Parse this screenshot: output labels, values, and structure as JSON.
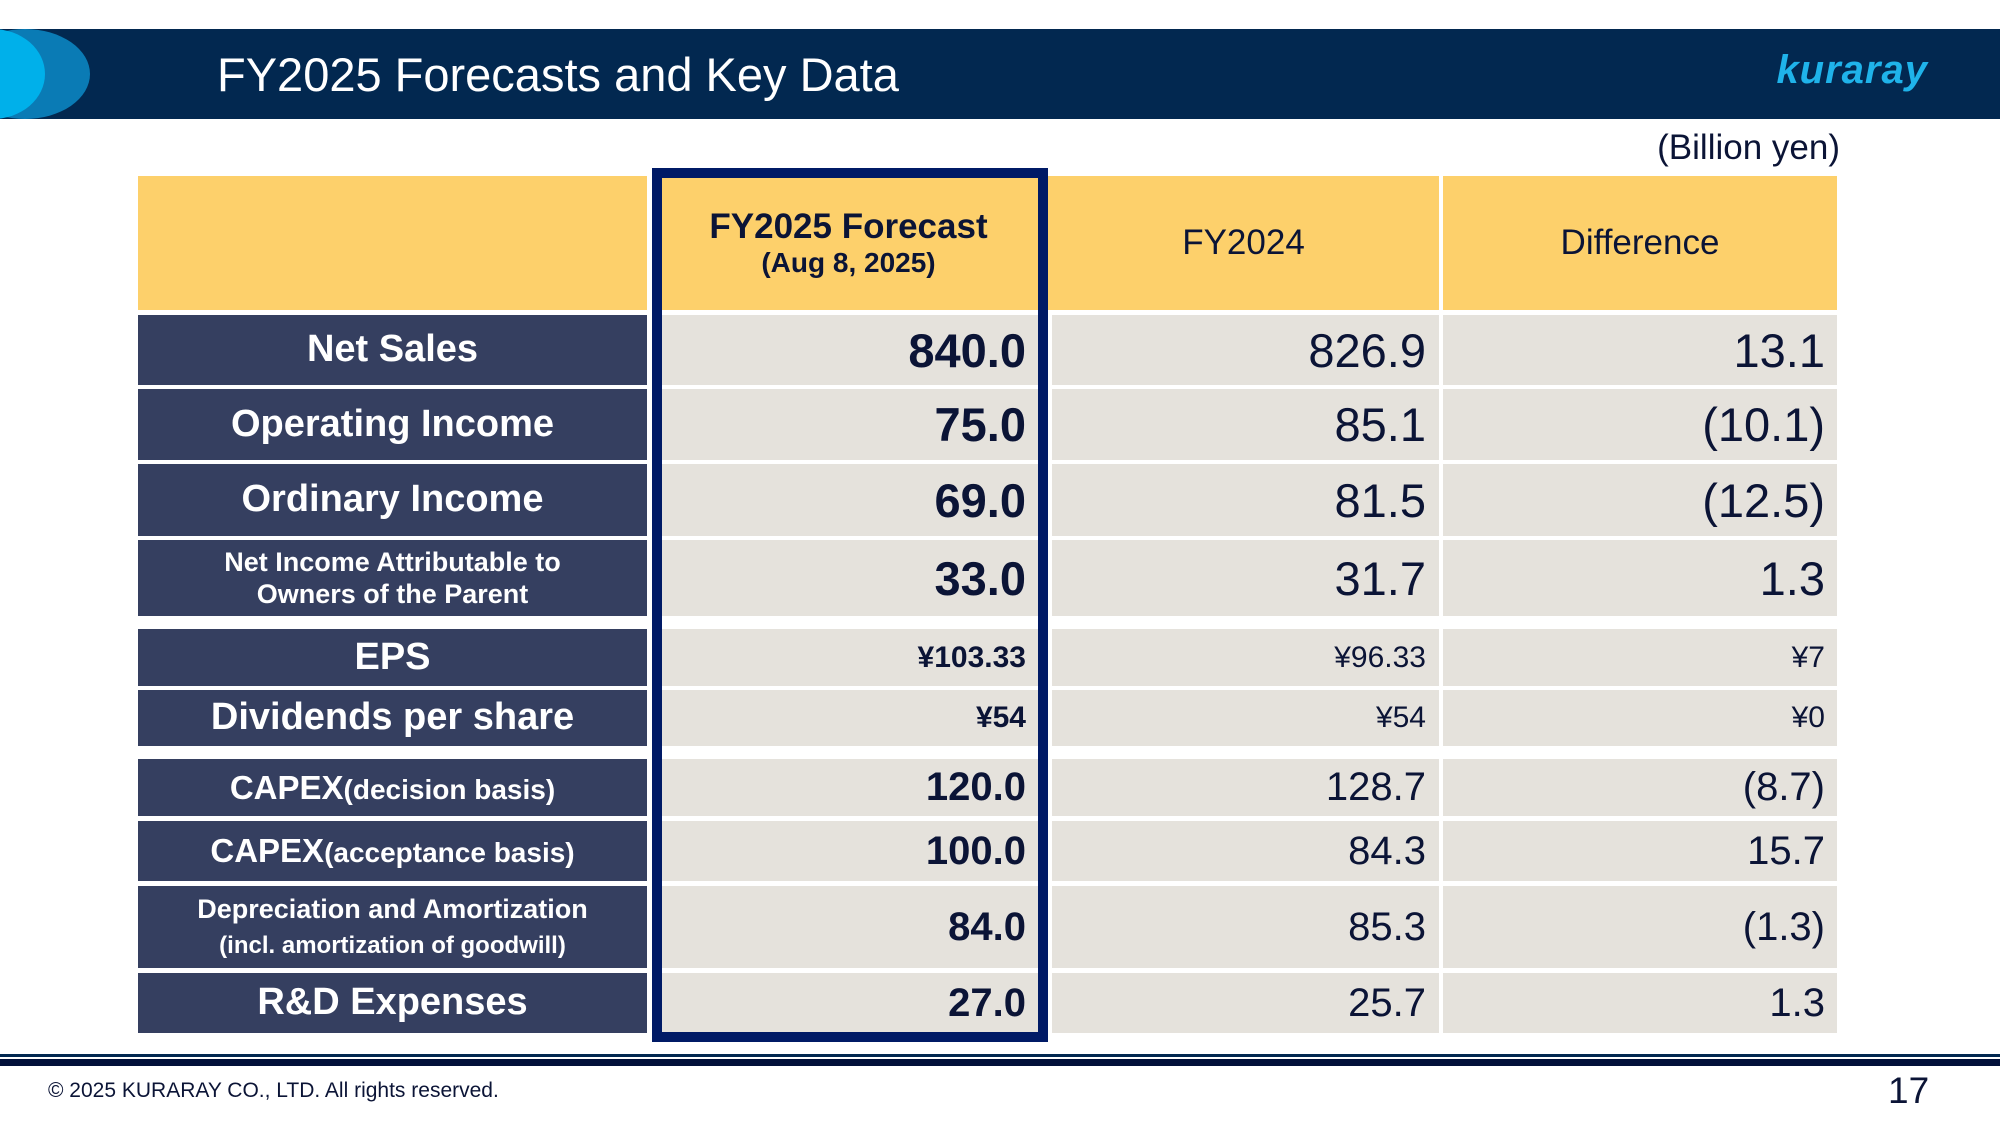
{
  "header": {
    "title": "FY2025 Forecasts and Key Data",
    "logo": "kuraray"
  },
  "unit": "(Billion yen)",
  "columns": {
    "forecast": "FY2025 Forecast",
    "forecast_date": "(Aug 8, 2025)",
    "prior": "FY2024",
    "diff": "Difference"
  },
  "rows": [
    {
      "label": "Net Sales",
      "forecast": "840.0",
      "prior": "826.9",
      "diff": "13.1"
    },
    {
      "label": "Operating Income",
      "forecast": "75.0",
      "prior": "85.1",
      "diff": "(10.1)"
    },
    {
      "label": "Ordinary Income",
      "forecast": "69.0",
      "prior": "81.5",
      "diff": "(12.5)"
    },
    {
      "label": "Net Income Attributable to",
      "label2": "Owners of the Parent",
      "forecast": "33.0",
      "prior": "31.7",
      "diff": "1.3"
    },
    {
      "label": "EPS",
      "forecast": "¥103.33",
      "prior": "¥96.33",
      "diff": "¥7"
    },
    {
      "label": "Dividends per share",
      "forecast": "¥54",
      "prior": "¥54",
      "diff": "¥0"
    },
    {
      "label": "CAPEX",
      "label2": "(decision basis)",
      "forecast": "120.0",
      "prior": "128.7",
      "diff": "(8.7)"
    },
    {
      "label": "CAPEX",
      "label2": "(acceptance basis)",
      "forecast": "100.0",
      "prior": "84.3",
      "diff": "15.7"
    },
    {
      "label": "Depreciation and Amortization",
      "label2": "(incl. amortization of goodwill)",
      "forecast": "84.0",
      "prior": "85.3",
      "diff": "(1.3)"
    },
    {
      "label": "R&D Expenses",
      "forecast": "27.0",
      "prior": "25.7",
      "diff": "1.3"
    }
  ],
  "footer": {
    "copyright": "© 2025 KURARAY CO., LTD. All rights reserved.",
    "page": "17"
  }
}
